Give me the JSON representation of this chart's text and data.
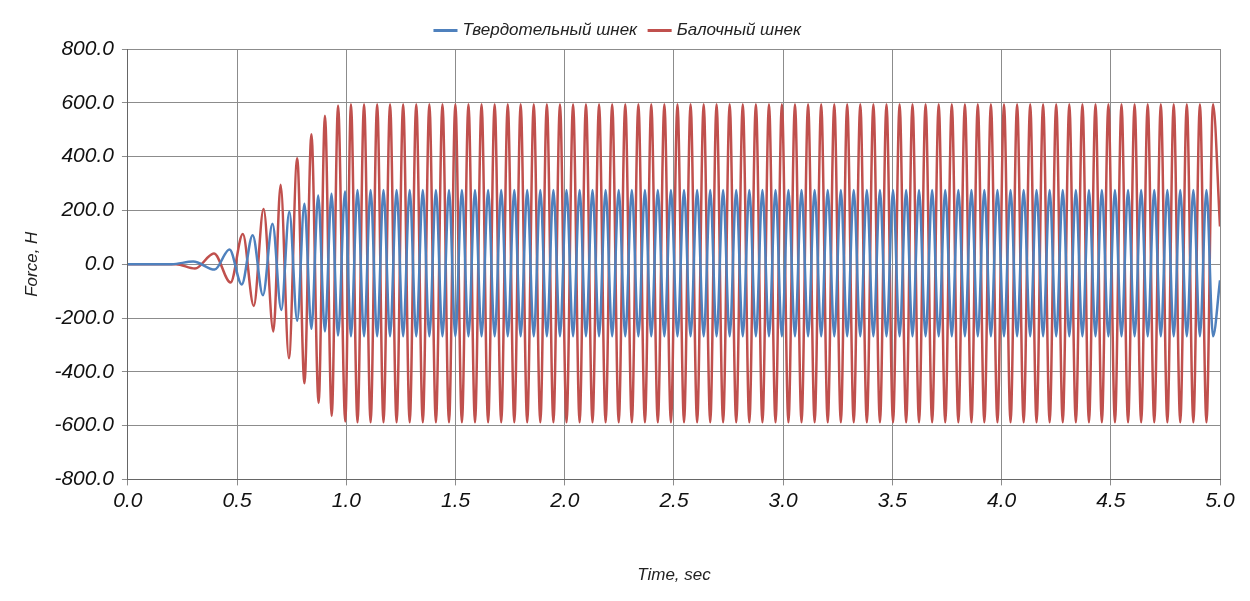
{
  "chart_data": {
    "type": "line",
    "xlabel": "Time, sec",
    "ylabel": "Force, H",
    "xlim": [
      0,
      5
    ],
    "xticks": [
      {
        "value": 0,
        "label": "0.0"
      },
      {
        "value": 0.5,
        "label": "0.5"
      },
      {
        "value": 1,
        "label": "1.0"
      },
      {
        "value": 1.5,
        "label": "1.5"
      },
      {
        "value": 2,
        "label": "2.0"
      },
      {
        "value": 2.5,
        "label": "2.5"
      },
      {
        "value": 3,
        "label": "3.0"
      },
      {
        "value": 3.5,
        "label": "3.5"
      },
      {
        "value": 4,
        "label": "4.0"
      },
      {
        "value": 4.5,
        "label": "4.5"
      },
      {
        "value": 5,
        "label": "5.0"
      }
    ],
    "ylim": [
      -800,
      800
    ],
    "yticks": [
      {
        "value": -800,
        "label": "-800.0"
      },
      {
        "value": -600,
        "label": "-600.0"
      },
      {
        "value": -400,
        "label": "-400.0"
      },
      {
        "value": -200,
        "label": "-200.0"
      },
      {
        "value": 0,
        "label": "0.0"
      },
      {
        "value": 200,
        "label": "200.0"
      },
      {
        "value": 400,
        "label": "400.0"
      },
      {
        "value": 600,
        "label": "600.0"
      },
      {
        "value": 800,
        "label": "800.0"
      }
    ],
    "grid": true,
    "legend": "top",
    "marker": "none",
    "line_style": "solid",
    "series": [
      {
        "name": "Твердотельный шнек",
        "color": "#4f81bd",
        "x": [
          0,
          0.2,
          0.299,
          0.397,
          0.465,
          0.521,
          0.571,
          0.618,
          0.662,
          0.702,
          0.739,
          0.775,
          0.808,
          0.84,
          0.871,
          0.902,
          0.932,
          0.962,
          0.994,
          1.021,
          1.051,
          1.081,
          1.111,
          1.141,
          1.17,
          1.2,
          1.23,
          1.26,
          1.29,
          1.32,
          1.35,
          1.38,
          1.41,
          1.44,
          1.47,
          1.499,
          1.529,
          1.559,
          1.589,
          1.619,
          1.649,
          1.679,
          1.709,
          1.739,
          1.769,
          1.798,
          1.828,
          1.858,
          1.888,
          1.918,
          1.948,
          1.978,
          2.008,
          2.038,
          2.068,
          2.097,
          2.127,
          2.157,
          2.187,
          2.217,
          2.247,
          2.277,
          2.307,
          2.337,
          2.367,
          2.396,
          2.426,
          2.456,
          2.486,
          2.516,
          2.546,
          2.576,
          2.606,
          2.636,
          2.666,
          2.695,
          2.725,
          2.755,
          2.785,
          2.815,
          2.845,
          2.875,
          2.905,
          2.935,
          2.965,
          2.994,
          3.024,
          3.054,
          3.084,
          3.114,
          3.144,
          3.174,
          3.204,
          3.234,
          3.264,
          3.293,
          3.323,
          3.353,
          3.383,
          3.413,
          3.443,
          3.473,
          3.503,
          3.533,
          3.563,
          3.592,
          3.622,
          3.652,
          3.682,
          3.712,
          3.742,
          3.772,
          3.802,
          3.832,
          3.862,
          3.891,
          3.921,
          3.951,
          3.981,
          4.011,
          4.041,
          4.071,
          4.101,
          4.131,
          4.16,
          4.19,
          4.22,
          4.25,
          4.28,
          4.31,
          4.34,
          4.37,
          4.4,
          4.43,
          4.459,
          4.489,
          4.519,
          4.549,
          4.579,
          4.609,
          4.639,
          4.669,
          4.699,
          4.729,
          4.759,
          4.788,
          4.818,
          4.848,
          4.878,
          4.908,
          4.938,
          4.968,
          5.0
        ],
        "values": [
          0,
          0,
          10,
          -20,
          55,
          -75,
          108,
          -115,
          150,
          -170,
          195,
          -210,
          225,
          -240,
          255,
          -250,
          262,
          -265,
          270,
          -268,
          276,
          -268,
          276,
          -268,
          276,
          -268,
          276,
          -268,
          276,
          -268,
          276,
          -268,
          276,
          -268,
          276,
          -268,
          276,
          -268,
          276,
          -268,
          276,
          -268,
          276,
          -268,
          276,
          -268,
          276,
          -268,
          276,
          -268,
          276,
          -268,
          276,
          -268,
          276,
          -268,
          276,
          -268,
          276,
          -268,
          276,
          -268,
          276,
          -268,
          276,
          -268,
          276,
          -268,
          276,
          -268,
          276,
          -268,
          276,
          -268,
          276,
          -268,
          276,
          -268,
          276,
          -268,
          276,
          -268,
          276,
          -268,
          276,
          -268,
          276,
          -268,
          276,
          -268,
          276,
          -268,
          276,
          -268,
          276,
          -268,
          276,
          -268,
          276,
          -268,
          276,
          -268,
          276,
          -268,
          276,
          -268,
          276,
          -268,
          276,
          -268,
          276,
          -268,
          276,
          -268,
          276,
          -268,
          276,
          -268,
          276,
          -268,
          276,
          -268,
          276,
          -268,
          276,
          -268,
          276,
          -268,
          276,
          -268,
          276,
          -268,
          276,
          -268,
          276,
          -268,
          276,
          -268,
          276,
          -268,
          276,
          -268,
          276,
          -268,
          276,
          -268,
          276,
          -268,
          276,
          -268,
          276,
          -268,
          -60
        ]
      },
      {
        "name": "Балочный шнек",
        "color": "#c0504d",
        "x": [
          0,
          0.22,
          0.307,
          0.394,
          0.47,
          0.526,
          0.576,
          0.621,
          0.666,
          0.699,
          0.737,
          0.775,
          0.808,
          0.84,
          0.873,
          0.902,
          0.933,
          0.962,
          0.995,
          1.021,
          1.051,
          1.081,
          1.111,
          1.141,
          1.17,
          1.2,
          1.23,
          1.26,
          1.29,
          1.32,
          1.35,
          1.38,
          1.41,
          1.44,
          1.47,
          1.499,
          1.529,
          1.559,
          1.589,
          1.619,
          1.649,
          1.679,
          1.709,
          1.739,
          1.769,
          1.798,
          1.828,
          1.858,
          1.888,
          1.918,
          1.948,
          1.978,
          2.008,
          2.038,
          2.068,
          2.097,
          2.127,
          2.157,
          2.187,
          2.217,
          2.247,
          2.277,
          2.307,
          2.337,
          2.367,
          2.396,
          2.426,
          2.456,
          2.486,
          2.516,
          2.546,
          2.576,
          2.606,
          2.636,
          2.666,
          2.695,
          2.725,
          2.755,
          2.785,
          2.815,
          2.845,
          2.875,
          2.905,
          2.935,
          2.965,
          2.994,
          3.024,
          3.054,
          3.084,
          3.114,
          3.144,
          3.174,
          3.204,
          3.234,
          3.264,
          3.293,
          3.323,
          3.353,
          3.383,
          3.413,
          3.443,
          3.473,
          3.503,
          3.533,
          3.563,
          3.592,
          3.622,
          3.652,
          3.682,
          3.712,
          3.742,
          3.772,
          3.802,
          3.832,
          3.862,
          3.891,
          3.921,
          3.951,
          3.981,
          4.011,
          4.041,
          4.071,
          4.101,
          4.131,
          4.16,
          4.19,
          4.22,
          4.25,
          4.28,
          4.31,
          4.34,
          4.37,
          4.4,
          4.43,
          4.459,
          4.489,
          4.519,
          4.549,
          4.579,
          4.609,
          4.639,
          4.669,
          4.699,
          4.729,
          4.759,
          4.788,
          4.818,
          4.848,
          4.878,
          4.908,
          4.938,
          4.968,
          5.0
        ],
        "values": [
          0,
          0,
          -16,
          40,
          -68,
          112,
          -155,
          205,
          -250,
          295,
          -350,
          394,
          -443,
          483,
          -516,
          552,
          -564,
          590,
          -585,
          595,
          -588,
          595,
          -588,
          595,
          -588,
          595,
          -588,
          595,
          -588,
          595,
          -588,
          595,
          -588,
          595,
          -588,
          595,
          -588,
          595,
          -588,
          595,
          -588,
          595,
          -588,
          595,
          -588,
          595,
          -588,
          595,
          -588,
          595,
          -588,
          595,
          -588,
          595,
          -588,
          595,
          -588,
          595,
          -588,
          595,
          -588,
          595,
          -588,
          595,
          -588,
          595,
          -588,
          595,
          -588,
          595,
          -588,
          595,
          -588,
          595,
          -588,
          595,
          -588,
          595,
          -588,
          595,
          -588,
          595,
          -588,
          595,
          -588,
          595,
          -588,
          595,
          -588,
          595,
          -588,
          595,
          -588,
          595,
          -588,
          595,
          -588,
          595,
          -588,
          595,
          -588,
          595,
          -588,
          595,
          -588,
          595,
          -588,
          595,
          -588,
          595,
          -588,
          595,
          -588,
          595,
          -588,
          595,
          -588,
          595,
          -588,
          595,
          -588,
          595,
          -588,
          595,
          -588,
          595,
          -588,
          595,
          -588,
          595,
          -588,
          595,
          -588,
          595,
          -588,
          595,
          -588,
          595,
          -588,
          595,
          -588,
          595,
          -588,
          595,
          -588,
          595,
          -588,
          595,
          -588,
          595,
          -588,
          595,
          140
        ]
      }
    ]
  }
}
